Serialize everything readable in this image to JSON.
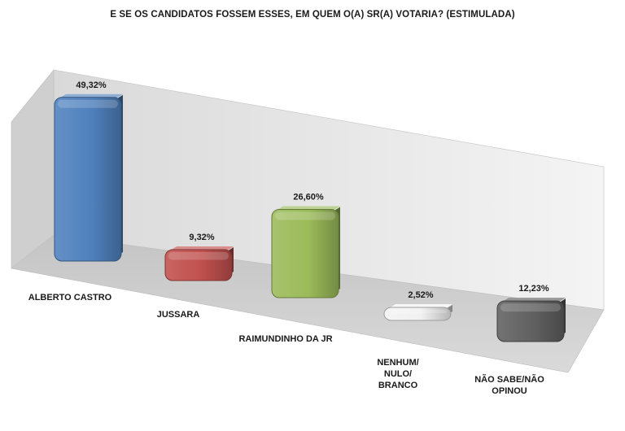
{
  "chart_data": {
    "type": "bar",
    "title": "E SE OS CANDIDATOS FOSSEM ESSES, EM QUEM O(A) SR(A) VOTARIA? (ESTIMULADA)",
    "categories": [
      "ALBERTO CASTRO",
      "JUSSARA",
      "RAIMUNDINHO DA JR",
      "NENHUM/ NULO/ BRANCO",
      "NÃO SABE/NÃO OPINOU"
    ],
    "category_lines": [
      [
        "ALBERTO CASTRO"
      ],
      [
        "JUSSARA"
      ],
      [
        "RAIMUNDINHO DA JR"
      ],
      [
        "NENHUM/",
        "NULO/",
        "BRANCO"
      ],
      [
        "NÃO SABE/NÃO",
        "OPINOU"
      ]
    ],
    "values": [
      49.32,
      9.32,
      26.6,
      2.52,
      12.23
    ],
    "value_labels": [
      "49,32%",
      "9,32%",
      "26,60%",
      "2,52%",
      "12,23%"
    ],
    "colors": [
      "#4f81bd",
      "#c0504d",
      "#9bbb59",
      "#f2f2f2",
      "#606060"
    ],
    "ylim": [
      0,
      50
    ],
    "grid": false,
    "legend": "none",
    "style": "3d-perspective"
  }
}
